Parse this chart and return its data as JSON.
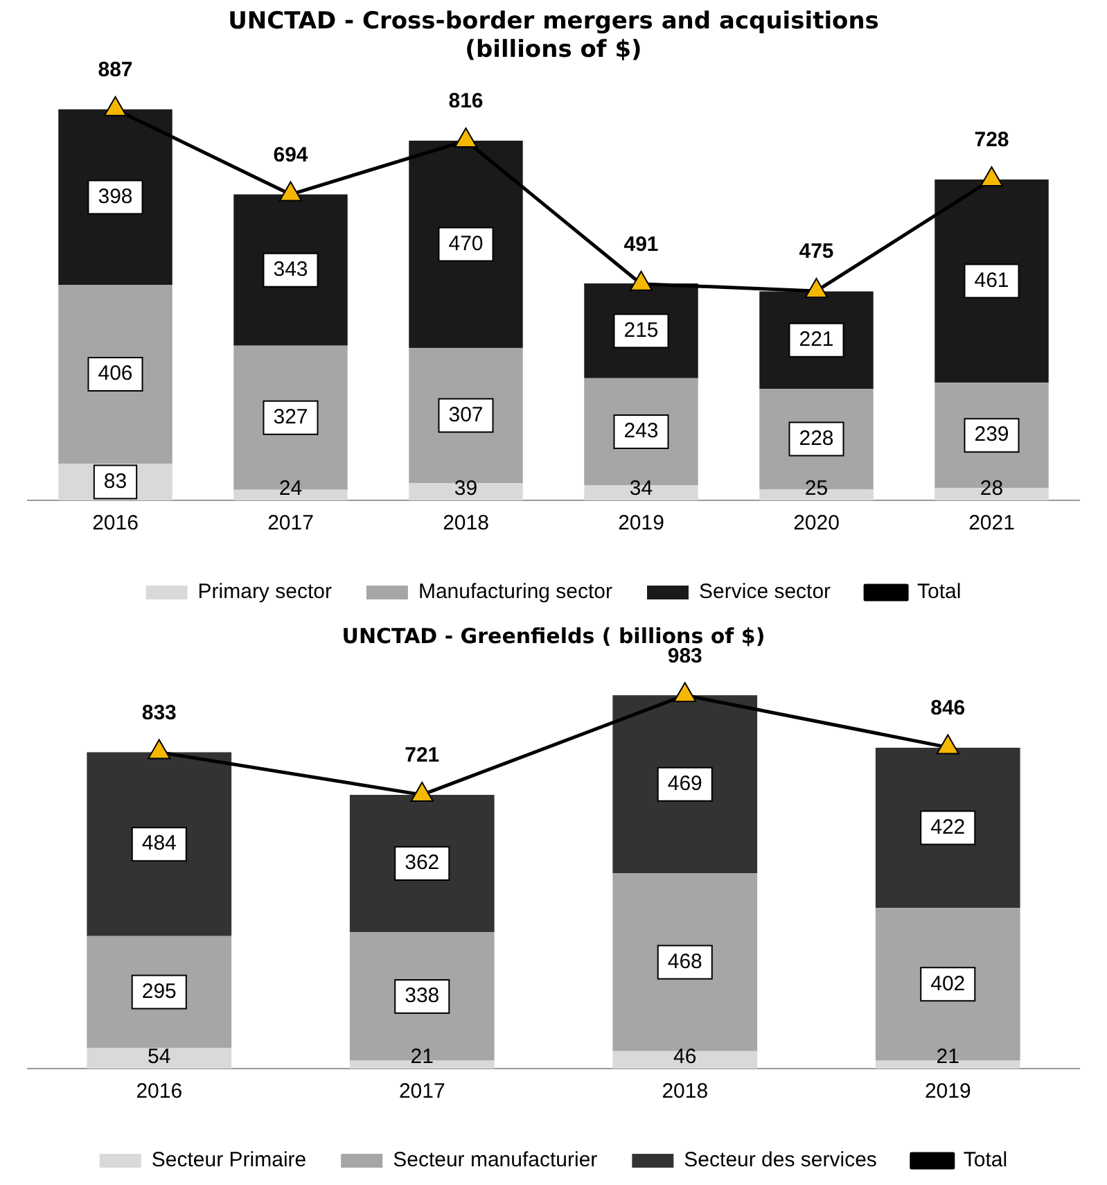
{
  "chart_data": [
    {
      "type": "bar",
      "title": "UNCTAD - Cross-border mergers and acquisitions\n(billions of $)",
      "categories": [
        "2016",
        "2017",
        "2018",
        "2019",
        "2020",
        "2021"
      ],
      "stacked": true,
      "data_labels": true,
      "legend": "bottom",
      "grid": false,
      "tick_labels": "x",
      "marker": "triangle",
      "series": [
        {
          "name": "Primary sector",
          "color": "#d9d9d9",
          "values": [
            83,
            24,
            39,
            34,
            25,
            28
          ]
        },
        {
          "name": "Manufacturing sector",
          "color": "#a6a6a6",
          "values": [
            406,
            327,
            307,
            243,
            228,
            239
          ]
        },
        {
          "name": "Service sector",
          "color": "#1a1a1a",
          "values": [
            398,
            343,
            470,
            215,
            221,
            461
          ]
        },
        {
          "name": "Total",
          "type": "line",
          "color": "#000000",
          "values": [
            887,
            694,
            816,
            491,
            475,
            728
          ]
        }
      ]
    },
    {
      "type": "bar",
      "title": "UNCTAD - Greenfields ( billions of $)",
      "categories": [
        "2016",
        "2017",
        "2018",
        "2019"
      ],
      "stacked": true,
      "data_labels": true,
      "legend": "bottom",
      "grid": false,
      "tick_labels": "x",
      "marker": "triangle",
      "series": [
        {
          "name": "Secteur Primaire",
          "color": "#d9d9d9",
          "values": [
            54,
            21,
            46,
            21
          ]
        },
        {
          "name": "Secteur manufacturier",
          "color": "#a6a6a6",
          "values": [
            295,
            338,
            468,
            402
          ]
        },
        {
          "name": "Secteur des services",
          "color": "#333333",
          "values": [
            484,
            362,
            469,
            422
          ]
        },
        {
          "name": "Total",
          "type": "line",
          "color": "#000000",
          "values": [
            833,
            721,
            983,
            846
          ]
        }
      ]
    }
  ]
}
